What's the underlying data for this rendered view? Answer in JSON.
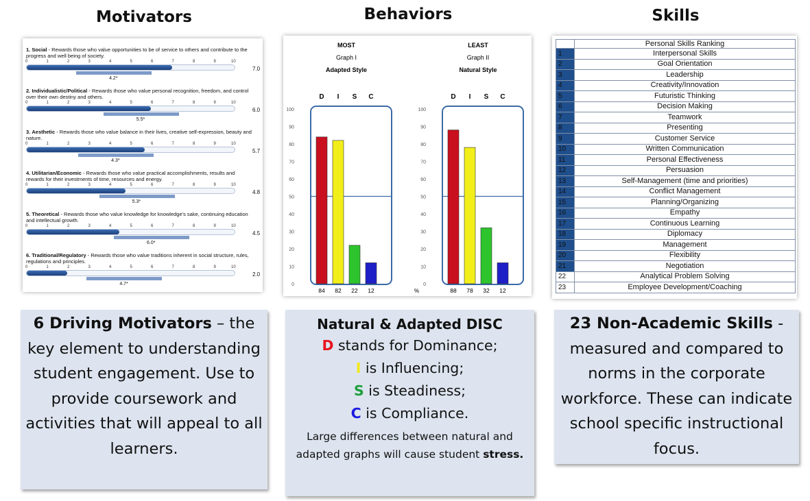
{
  "headings": {
    "motivators": "Motivators",
    "behaviors": "Behaviors",
    "skills": "Skills"
  },
  "motivators": {
    "scale_ticks": [
      "0",
      "1",
      "2",
      "3",
      "4",
      "5",
      "6",
      "7",
      "8",
      "9",
      "10"
    ],
    "items": [
      {
        "num": "1.",
        "name": "Social",
        "desc": " - Rewards those who value opportunities to be of service to others and contribute to the progress and well being of society.",
        "score": "7.0",
        "norm": "4.2*",
        "value": 7.0,
        "norm_value": 4.2
      },
      {
        "num": "2.",
        "name": "Individualistic/Political",
        "desc": " - Rewards those who value personal recognition, freedom, and control over their own destiny and others.",
        "score": "6.0",
        "norm": "5.5*",
        "value": 6.0,
        "norm_value": 5.5
      },
      {
        "num": "3.",
        "name": "Aesthetic",
        "desc": " - Rewards those who value balance in their lives, creative self-expression, beauty and nature.",
        "score": "5.7",
        "norm": "4.3*",
        "value": 5.7,
        "norm_value": 4.3
      },
      {
        "num": "4.",
        "name": "Utilitarian/Economic",
        "desc": " - Rewards those who value practical accomplishments, results and rewards for their investments of time, resources and energy.",
        "score": "4.8",
        "norm": "5.3*",
        "value": 4.8,
        "norm_value": 5.3
      },
      {
        "num": "5.",
        "name": "Theoretical",
        "desc": " - Rewards those who value knowledge for knowledge's sake, continuing education and intellectual growth.",
        "score": "4.5",
        "norm": "6.0*",
        "value": 4.5,
        "norm_value": 6.0
      },
      {
        "num": "6.",
        "name": "Traditional/Regulatory",
        "desc": " - Rewards those who value traditions inherent in social structure, rules, regulations and principles.",
        "score": "2.0",
        "norm": "4.7*",
        "value": 2.0,
        "norm_value": 4.7
      }
    ]
  },
  "behaviors": {
    "letters": [
      "D",
      "I",
      "S",
      "C"
    ],
    "y_ticks": [
      "100",
      "90",
      "80",
      "70",
      "60",
      "50",
      "40",
      "30",
      "20",
      "10",
      "0"
    ],
    "percent_sign": "%",
    "colors": {
      "D": "#c8101e",
      "I": "#f2ee1a",
      "S": "#2ec42e",
      "C": "#1f1fc8",
      "frame": "#3a6aa8"
    },
    "graphs": [
      {
        "head1": "MOST",
        "head2": "Graph I",
        "head3": "Adapted Style",
        "values": [
          84,
          82,
          22,
          12
        ]
      },
      {
        "head1": "LEAST",
        "head2": "Graph II",
        "head3": "Natural Style",
        "values": [
          88,
          78,
          32,
          12
        ]
      }
    ]
  },
  "skills": {
    "title": "Personal Skills Ranking",
    "rows": [
      {
        "rank": "1",
        "name": "Interpersonal Skills"
      },
      {
        "rank": "2",
        "name": "Goal Orientation"
      },
      {
        "rank": "3",
        "name": "Leadership"
      },
      {
        "rank": "4",
        "name": "Creativity/Innovation"
      },
      {
        "rank": "5",
        "name": "Futuristic Thinking"
      },
      {
        "rank": "6",
        "name": "Decision Making"
      },
      {
        "rank": "7",
        "name": "Teamwork"
      },
      {
        "rank": "8",
        "name": "Presenting"
      },
      {
        "rank": "9",
        "name": "Customer Service"
      },
      {
        "rank": "10",
        "name": "Written Communication"
      },
      {
        "rank": "11",
        "name": "Personal Effectiveness"
      },
      {
        "rank": "12",
        "name": "Persuasion"
      },
      {
        "rank": "13",
        "name": "Self-Management (time and priorities)"
      },
      {
        "rank": "14",
        "name": "Conflict Management"
      },
      {
        "rank": "15",
        "name": "Planning/Organizing"
      },
      {
        "rank": "16",
        "name": "Empathy"
      },
      {
        "rank": "17",
        "name": "Continuous Learning"
      },
      {
        "rank": "18",
        "name": "Diplomacy"
      },
      {
        "rank": "19",
        "name": "Management"
      },
      {
        "rank": "20",
        "name": "Flexibility"
      },
      {
        "rank": "21",
        "name": "Negotiation"
      },
      {
        "rank": "22",
        "name": "Analytical Problem Solving"
      },
      {
        "rank": "23",
        "name": "Employee Development/Coaching"
      }
    ]
  },
  "captions": {
    "motivators": {
      "bold": "6 Driving Motivators",
      "rest": " – the key element to understanding student engagement.  Use to provide coursework and activities that will appeal to all learners."
    },
    "behaviors": {
      "title": "Natural & Adapted DISC",
      "lines": [
        {
          "letter": "D",
          "text": " stands for Dominance;",
          "color": "#e8141e"
        },
        {
          "letter": "I",
          "text": " is Influencing;",
          "color": "#f2e81a"
        },
        {
          "letter": "S",
          "text": " is Steadiness;",
          "color": "#1e9e3a"
        },
        {
          "letter": "C",
          "text": " is Compliance.",
          "color": "#1a1ae0"
        }
      ],
      "note": "Large differences between natural and adapted graphs will cause student ",
      "note_bold": "stress."
    },
    "skills": {
      "bold": "23 Non-Academic Skills",
      "rest": " - measured and compared to norms in the corporate workforce.  These can indicate school specific instructional focus."
    }
  }
}
